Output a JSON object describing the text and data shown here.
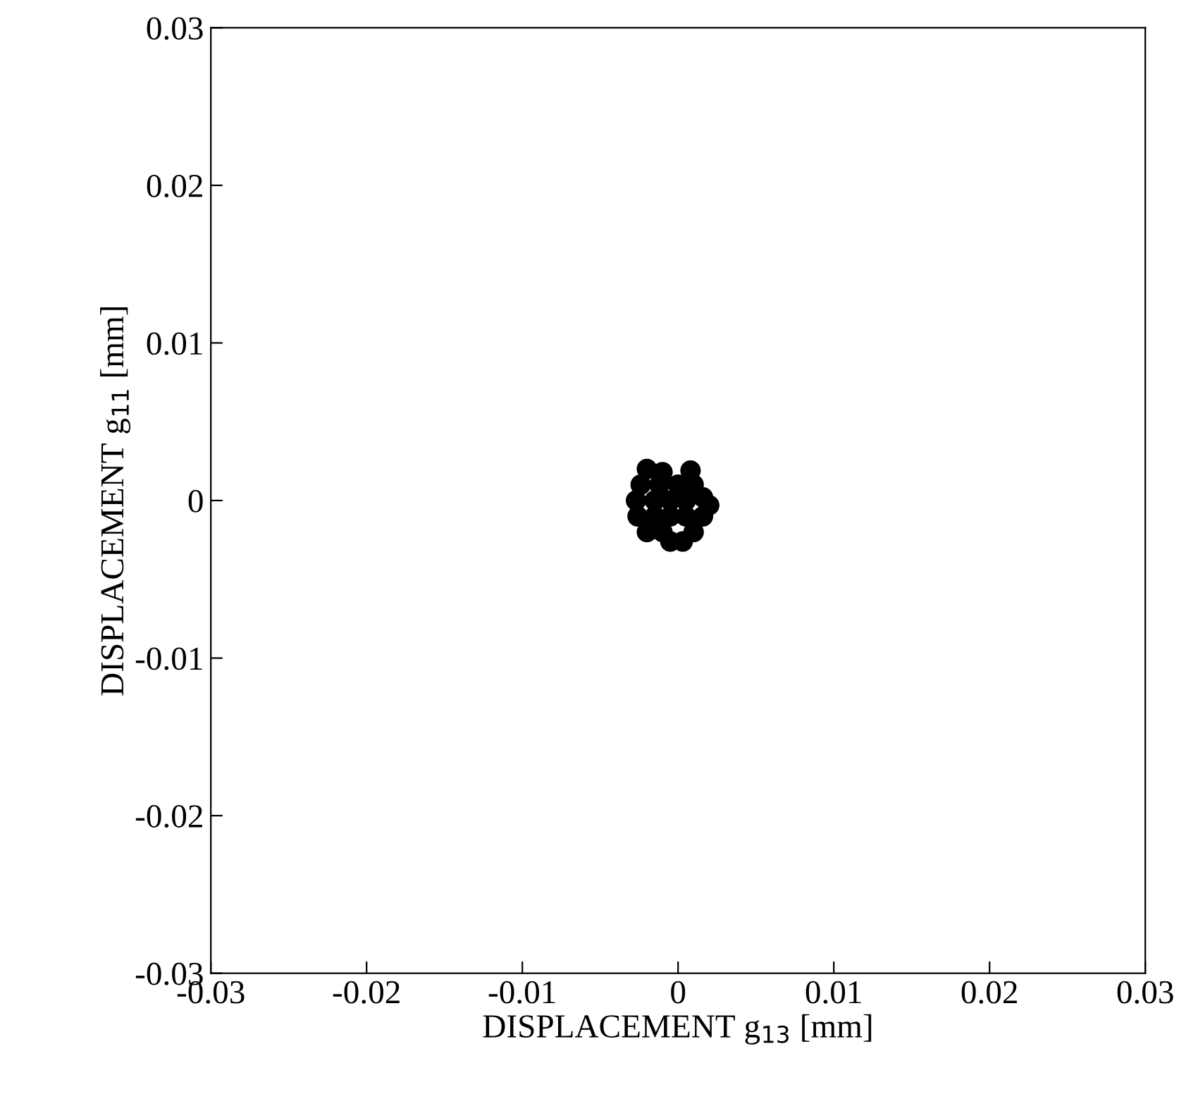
{
  "chart_data": {
    "type": "scatter",
    "xlabel": "DISPLACEMENT g$_{13}$ [mm]",
    "ylabel": "DISPLACEMENT g$_{11}$ [mm]",
    "x": [
      -0.002,
      -0.001,
      0.0008,
      -0.0024,
      -0.0012,
      0.0,
      0.001,
      -0.0027,
      -0.0015,
      -0.0005,
      0.0005,
      0.0016,
      0.002,
      -0.0026,
      -0.0015,
      -0.0005,
      0.0005,
      0.0016,
      -0.002,
      -0.001,
      0.001,
      -0.0005,
      0.0003
    ],
    "series": [
      {
        "color": "#000000",
        "values": [
          0.002,
          0.0018,
          0.0019,
          0.001,
          0.001,
          0.001,
          0.001,
          0.0,
          0.0,
          0.0,
          0.0,
          0.0002,
          -0.0003,
          -0.001,
          -0.001,
          -0.001,
          -0.001,
          -0.001,
          -0.002,
          -0.002,
          -0.002,
          -0.0026,
          -0.0026
        ]
      }
    ],
    "marker": "circle",
    "grid": false,
    "legend": false,
    "xlim": [
      -0.03,
      0.03
    ],
    "ylim": [
      -0.03,
      0.03
    ],
    "xticks": [
      -0.03,
      -0.02,
      -0.01,
      0,
      0.01,
      0.02,
      0.03
    ],
    "yticks": [
      -0.03,
      -0.02,
      -0.01,
      0,
      0.01,
      0.02,
      0.03
    ]
  }
}
